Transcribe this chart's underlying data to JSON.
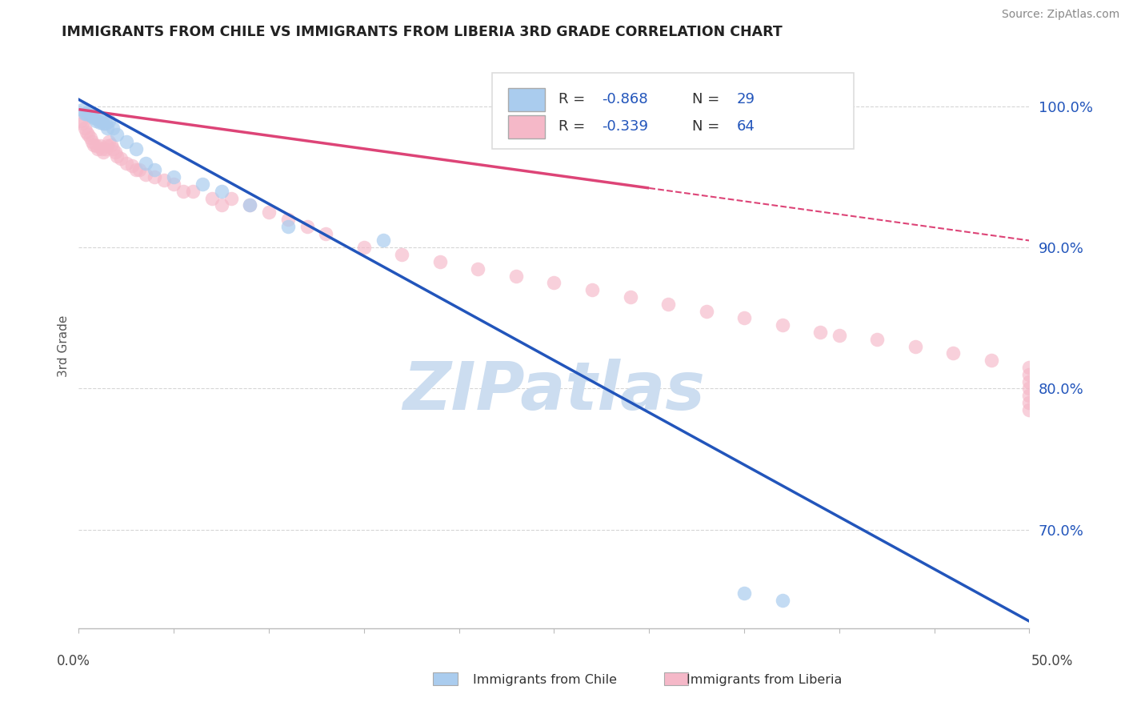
{
  "title": "IMMIGRANTS FROM CHILE VS IMMIGRANTS FROM LIBERIA 3RD GRADE CORRELATION CHART",
  "source": "Source: ZipAtlas.com",
  "ylabel": "3rd Grade",
  "watermark": "ZIPatlas",
  "xlim": [
    0.0,
    50.0
  ],
  "ylim": [
    63.0,
    103.0
  ],
  "ytick_vals": [
    70.0,
    80.0,
    90.0,
    100.0
  ],
  "ytick_labels": [
    "70.0%",
    "80.0%",
    "90.0%",
    "100.0%"
  ],
  "blue_R": -0.868,
  "blue_N": 29,
  "pink_R": -0.339,
  "pink_N": 64,
  "blue_color": "#aaccee",
  "pink_color": "#f5b8c8",
  "blue_line_color": "#2255bb",
  "pink_line_color": "#dd4477",
  "grid_color": "#cccccc",
  "axis_color": "#bbbbbb",
  "title_color": "#222222",
  "source_color": "#888888",
  "watermark_color": "#ccddf0",
  "blue_line_x0": 0.0,
  "blue_line_y0": 100.5,
  "blue_line_x1": 50.0,
  "blue_line_y1": 63.5,
  "pink_line_x0": 0.0,
  "pink_line_y0": 99.8,
  "pink_line_x1": 50.0,
  "pink_line_y1": 90.5,
  "pink_solid_end": 30.0,
  "blue_scatter_x": [
    0.2,
    0.3,
    0.4,
    0.5,
    0.6,
    0.7,
    0.8,
    0.9,
    1.0,
    1.1,
    1.2,
    1.3,
    1.4,
    1.5,
    1.6,
    1.8,
    2.0,
    2.5,
    3.0,
    3.5,
    4.0,
    5.0,
    6.5,
    7.5,
    9.0,
    11.0,
    16.0,
    35.0,
    37.0
  ],
  "blue_scatter_y": [
    99.8,
    99.5,
    99.5,
    99.6,
    99.4,
    99.3,
    99.2,
    99.0,
    99.1,
    98.9,
    99.0,
    98.8,
    98.8,
    98.5,
    99.0,
    98.5,
    98.0,
    97.5,
    97.0,
    96.0,
    95.5,
    95.0,
    94.5,
    94.0,
    93.0,
    91.5,
    90.5,
    65.5,
    65.0
  ],
  "pink_scatter_x": [
    0.1,
    0.2,
    0.3,
    0.4,
    0.5,
    0.6,
    0.7,
    0.8,
    0.9,
    1.0,
    1.1,
    1.2,
    1.3,
    1.4,
    1.5,
    1.6,
    1.7,
    1.8,
    1.9,
    2.0,
    2.2,
    2.5,
    2.8,
    3.0,
    3.2,
    3.5,
    4.0,
    4.5,
    5.0,
    5.5,
    6.0,
    7.0,
    7.5,
    8.0,
    9.0,
    10.0,
    11.0,
    12.0,
    13.0,
    15.0,
    17.0,
    19.0,
    21.0,
    23.0,
    25.0,
    27.0,
    29.0,
    31.0,
    33.0,
    35.0,
    37.0,
    39.0,
    40.0,
    42.0,
    44.0,
    46.0,
    48.0,
    50.0,
    50.0,
    50.0,
    50.0,
    50.0,
    50.0,
    50.0
  ],
  "pink_scatter_y": [
    99.0,
    98.8,
    98.5,
    98.2,
    98.0,
    97.8,
    97.5,
    97.3,
    97.2,
    97.0,
    97.2,
    97.0,
    96.8,
    97.0,
    97.2,
    97.5,
    97.3,
    97.0,
    96.8,
    96.5,
    96.3,
    96.0,
    95.8,
    95.5,
    95.5,
    95.2,
    95.0,
    94.8,
    94.5,
    94.0,
    94.0,
    93.5,
    93.0,
    93.5,
    93.0,
    92.5,
    92.0,
    91.5,
    91.0,
    90.0,
    89.5,
    89.0,
    88.5,
    88.0,
    87.5,
    87.0,
    86.5,
    86.0,
    85.5,
    85.0,
    84.5,
    84.0,
    83.8,
    83.5,
    83.0,
    82.5,
    82.0,
    81.5,
    81.0,
    80.5,
    80.0,
    79.5,
    79.0,
    78.5
  ]
}
